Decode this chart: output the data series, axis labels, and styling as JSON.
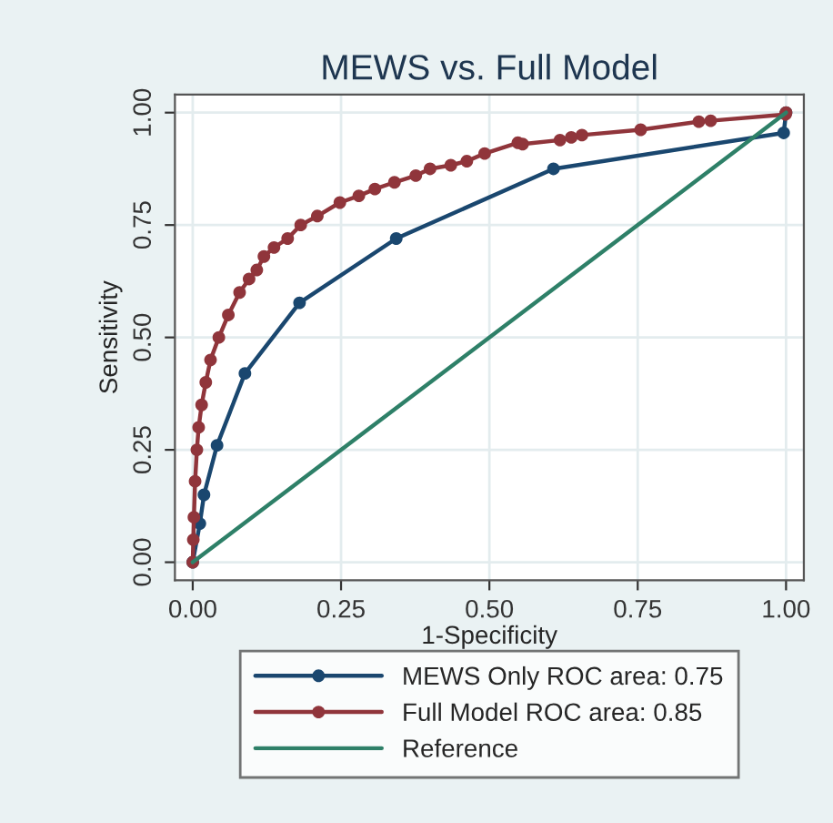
{
  "chart_data": {
    "type": "line",
    "title": "MEWS vs. Full Model",
    "xlabel": "1-Specificity",
    "ylabel": "Sensitivity",
    "xlim": [
      -0.03,
      1.03
    ],
    "ylim": [
      -0.04,
      1.04
    ],
    "xticks": [
      {
        "value": 0,
        "label": "0.00"
      },
      {
        "value": 0.25,
        "label": "0.25"
      },
      {
        "value": 0.5,
        "label": "0.50"
      },
      {
        "value": 0.75,
        "label": "0.75"
      },
      {
        "value": 1,
        "label": "1.00"
      }
    ],
    "yticks": [
      {
        "value": 0,
        "label": "0.00"
      },
      {
        "value": 0.25,
        "label": "0.25"
      },
      {
        "value": 0.5,
        "label": "0.50"
      },
      {
        "value": 0.75,
        "label": "0.75"
      },
      {
        "value": 1,
        "label": "1.00"
      }
    ],
    "grid": true,
    "legend": "bottom",
    "marker": "circle",
    "line_style": "solid",
    "series": [
      {
        "name": "MEWS Only ROC area: 0.75",
        "color": "#1a476f",
        "x": [
          0,
          0.012,
          0.019,
          0.041,
          0.088,
          0.18,
          0.343,
          0.608,
          0.996,
          1
        ],
        "values": [
          0,
          0.086,
          0.15,
          0.26,
          0.42,
          0.577,
          0.72,
          0.875,
          0.955,
          1
        ]
      },
      {
        "name": "Full Model ROC area: 0.85",
        "color": "#90353b",
        "x": [
          0,
          0.001,
          0.002,
          0.004,
          0.007,
          0.01,
          0.015,
          0.022,
          0.03,
          0.044,
          0.06,
          0.079,
          0.095,
          0.108,
          0.12,
          0.137,
          0.16,
          0.182,
          0.21,
          0.248,
          0.28,
          0.307,
          0.34,
          0.376,
          0.4,
          0.435,
          0.462,
          0.492,
          0.548,
          0.556,
          0.619,
          0.638,
          0.656,
          0.755,
          0.853,
          0.873,
          0.999,
          1
        ],
        "values": [
          0,
          0.05,
          0.1,
          0.18,
          0.25,
          0.3,
          0.35,
          0.4,
          0.45,
          0.5,
          0.55,
          0.6,
          0.63,
          0.65,
          0.68,
          0.7,
          0.72,
          0.75,
          0.77,
          0.8,
          0.815,
          0.83,
          0.845,
          0.86,
          0.875,
          0.883,
          0.892,
          0.909,
          0.933,
          0.93,
          0.939,
          0.945,
          0.95,
          0.962,
          0.98,
          0.982,
          0.996,
          1
        ]
      },
      {
        "name": "Reference",
        "color": "#2e8068",
        "marker": "none",
        "x": [
          0,
          1
        ],
        "values": [
          0,
          1
        ]
      }
    ]
  }
}
